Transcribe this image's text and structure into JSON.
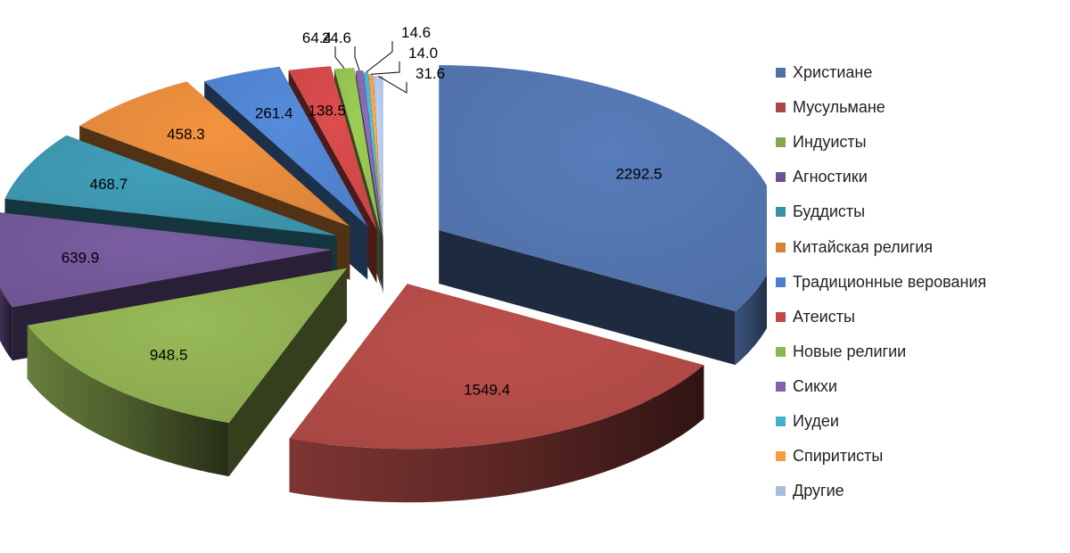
{
  "chart_data": {
    "type": "pie",
    "title": "",
    "legend_position": "right",
    "categories": [
      "Христиане",
      "Мусульмане",
      "Индуисты",
      "Агностики",
      "Буддисты",
      "Китайская религия",
      "Традиционные верования",
      "Атеисты",
      "Новые религии",
      "Сикхи",
      "Иудеи",
      "Спиритисты",
      "Другие"
    ],
    "values": [
      2292.5,
      1549.4,
      948.5,
      639.9,
      468.7,
      458.3,
      261.4,
      138.5,
      64.4,
      24.6,
      14.6,
      14.0,
      31.6
    ],
    "value_labels": [
      "2292.5",
      "1549.4",
      "948.5",
      "639.9",
      "468.7",
      "458.3",
      "261.4",
      "138.5",
      "64.4",
      "24.6",
      "14.6",
      "14.0",
      "31.6"
    ],
    "colors": [
      "#4F6FA6",
      "#A84743",
      "#88A64E",
      "#6D5491",
      "#3A8FA6",
      "#D98338",
      "#4D7DC4",
      "#C64545",
      "#8DB84D",
      "#7E63A8",
      "#45AECB",
      "#F59A3E",
      "#A9BDDC"
    ]
  }
}
